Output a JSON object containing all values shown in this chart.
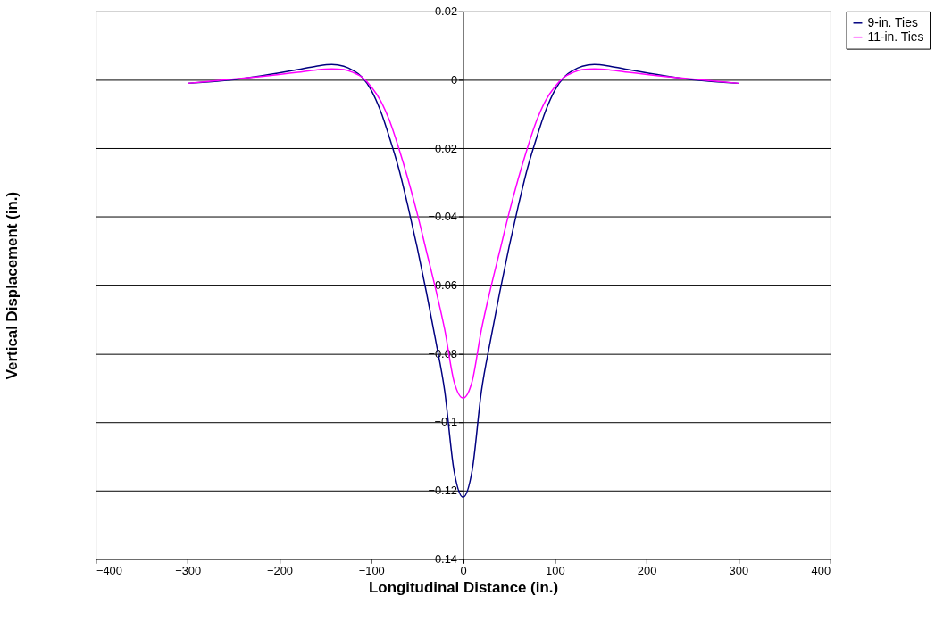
{
  "chart_data": {
    "type": "line",
    "xlabel": "Longitudinal Distance (in.)",
    "ylabel": "Vertical Displacement (in.)",
    "x": [
      -300,
      -260,
      -220,
      -180,
      -160,
      -143,
      -130,
      -120,
      -110,
      -100,
      -90,
      -80,
      -70,
      -60,
      -50,
      -40,
      -30,
      -20,
      -10,
      0,
      10,
      20,
      30,
      40,
      50,
      60,
      70,
      80,
      90,
      100,
      110,
      120,
      130,
      143,
      160,
      180,
      220,
      260,
      300
    ],
    "series": [
      {
        "name": "9-in. Ties",
        "color": "#000080",
        "values": [
          -0.001,
          -0.0002,
          0.0012,
          0.003,
          0.004,
          0.0045,
          0.004,
          0.0028,
          0.0008,
          -0.003,
          -0.009,
          -0.017,
          -0.026,
          -0.037,
          -0.049,
          -0.062,
          -0.076,
          -0.091,
          -0.114,
          -0.122,
          -0.114,
          -0.091,
          -0.076,
          -0.062,
          -0.049,
          -0.037,
          -0.026,
          -0.017,
          -0.009,
          -0.003,
          0.0008,
          0.0028,
          0.004,
          0.0045,
          0.004,
          0.003,
          0.0012,
          -0.0002,
          -0.001
        ]
      },
      {
        "name": "11-in. Ties",
        "color": "#ff00ff",
        "values": [
          -0.001,
          0,
          0.001,
          0.0022,
          0.0029,
          0.0032,
          0.003,
          0.0022,
          0.0008,
          -0.002,
          -0.006,
          -0.012,
          -0.02,
          -0.029,
          -0.039,
          -0.05,
          -0.061,
          -0.073,
          -0.088,
          -0.093,
          -0.088,
          -0.073,
          -0.061,
          -0.05,
          -0.039,
          -0.029,
          -0.02,
          -0.012,
          -0.006,
          -0.002,
          0.0008,
          0.0022,
          0.003,
          0.0032,
          0.0029,
          0.0022,
          0.001,
          0,
          -0.001
        ]
      }
    ],
    "xlim": [
      -400,
      400
    ],
    "xticks": [
      -400,
      -300,
      -200,
      -100,
      0,
      100,
      200,
      300,
      400
    ],
    "ylim": [
      -0.14,
      0.02
    ],
    "yticks": [
      -0.14,
      -0.12,
      -0.1,
      -0.08,
      -0.06,
      -0.04,
      -0.02,
      0,
      0.02
    ],
    "grid": "y",
    "legend": "right",
    "marker": "none",
    "line_style": "solid"
  }
}
